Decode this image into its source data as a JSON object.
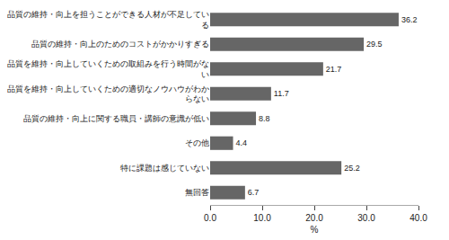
{
  "chart_data": {
    "type": "bar",
    "orientation": "horizontal",
    "categories": [
      "品質の維持・向上を担うことができる人材が不足してい\nる",
      "品質の維持・向上のためのコストがかかりすぎる",
      "品質を維持・向上していくための取組みを行う時間がな\nい",
      "品質を維持・向上していくための適切なノウハウがわか\nらない",
      "品質の維持・向上に関する職員・講師の意識が低い",
      "その他",
      "特に課題は感じていない",
      "無回答"
    ],
    "values": [
      36.2,
      29.5,
      21.7,
      11.7,
      8.8,
      4.4,
      25.2,
      6.7
    ],
    "value_labels": [
      "36.2",
      "29.5",
      "21.7",
      "11.7",
      "8.8",
      "4.4",
      "25.2",
      "6.7"
    ],
    "data_labels": true,
    "color": "#666666",
    "xlabel": "%",
    "xlim": [
      0,
      40.0
    ],
    "xticks": [
      {
        "value": 0.0,
        "label": "0.0"
      },
      {
        "value": 10.0,
        "label": "10.0"
      },
      {
        "value": 20.0,
        "label": "20.0"
      },
      {
        "value": 30.0,
        "label": "30.0"
      },
      {
        "value": 40.0,
        "label": "40.0"
      }
    ],
    "grid": false
  }
}
